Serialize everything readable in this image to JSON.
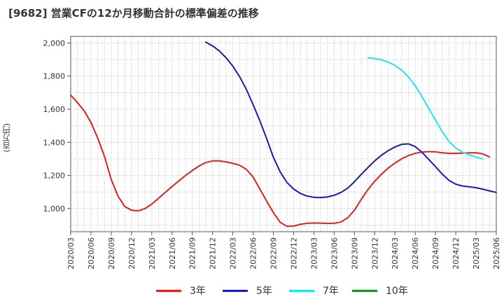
{
  "chart_data": {
    "type": "line",
    "title": "[9682]  営業CFの12か月移動合計の標準偏差の推移",
    "ylabel": "(百万円)",
    "xlabel": "",
    "ylim": [
      860,
      2040
    ],
    "yticks": [
      1000,
      1200,
      1400,
      1600,
      1800,
      2000
    ],
    "ytick_labels": [
      "1,000",
      "1,200",
      "1,400",
      "1,600",
      "1,800",
      "2,000"
    ],
    "xlim": [
      "2020-03",
      "2025-06"
    ],
    "xtick_labels": [
      "2020/03",
      "2020/06",
      "2020/09",
      "2020/12",
      "2021/03",
      "2021/06",
      "2021/09",
      "2021/12",
      "2022/03",
      "2022/06",
      "2022/09",
      "2022/12",
      "2023/03",
      "2023/06",
      "2023/09",
      "2023/12",
      "2024/03",
      "2024/06",
      "2024/09",
      "2024/12",
      "2025/03",
      "2025/06"
    ],
    "grid": true,
    "legend_position": "bottom",
    "series": [
      {
        "name": "3年",
        "color": "#e0201b",
        "start": "2020-03",
        "values": [
          1685,
          1640,
          1590,
          1520,
          1425,
          1315,
          1175,
          1075,
          1012,
          990,
          986,
          1000,
          1027,
          1062,
          1098,
          1133,
          1167,
          1200,
          1230,
          1257,
          1278,
          1288,
          1288,
          1282,
          1273,
          1262,
          1237,
          1190,
          1118,
          1045,
          975,
          917,
          893,
          894,
          905,
          911,
          913,
          912,
          910,
          911,
          919,
          944,
          990,
          1055,
          1115,
          1165,
          1208,
          1245,
          1275,
          1301,
          1320,
          1334,
          1341,
          1344,
          1342,
          1337,
          1333,
          1333,
          1335,
          1337,
          1337,
          1330,
          1312
        ]
      },
      {
        "name": "5年",
        "color": "#1a1ab8",
        "start": "2021-11",
        "values": [
          2005,
          1983,
          1952,
          1911,
          1860,
          1797,
          1720,
          1628,
          1530,
          1423,
          1310,
          1222,
          1158,
          1118,
          1091,
          1075,
          1068,
          1066,
          1070,
          1080,
          1097,
          1123,
          1162,
          1206,
          1248,
          1288,
          1322,
          1350,
          1372,
          1388,
          1391,
          1374,
          1340,
          1297,
          1253,
          1208,
          1170,
          1147,
          1136,
          1131,
          1126,
          1117,
          1107,
          1097
        ]
      },
      {
        "name": "7年",
        "color": "#22e5ea",
        "start": "2023-11",
        "values": [
          1910,
          1907,
          1899,
          1885,
          1865,
          1836,
          1795,
          1742,
          1677,
          1604,
          1535,
          1463,
          1405,
          1366,
          1341,
          1325,
          1311,
          1300
        ]
      },
      {
        "name": "10年",
        "color": "#1f8a1f",
        "start": "2025-03",
        "values": []
      }
    ]
  }
}
